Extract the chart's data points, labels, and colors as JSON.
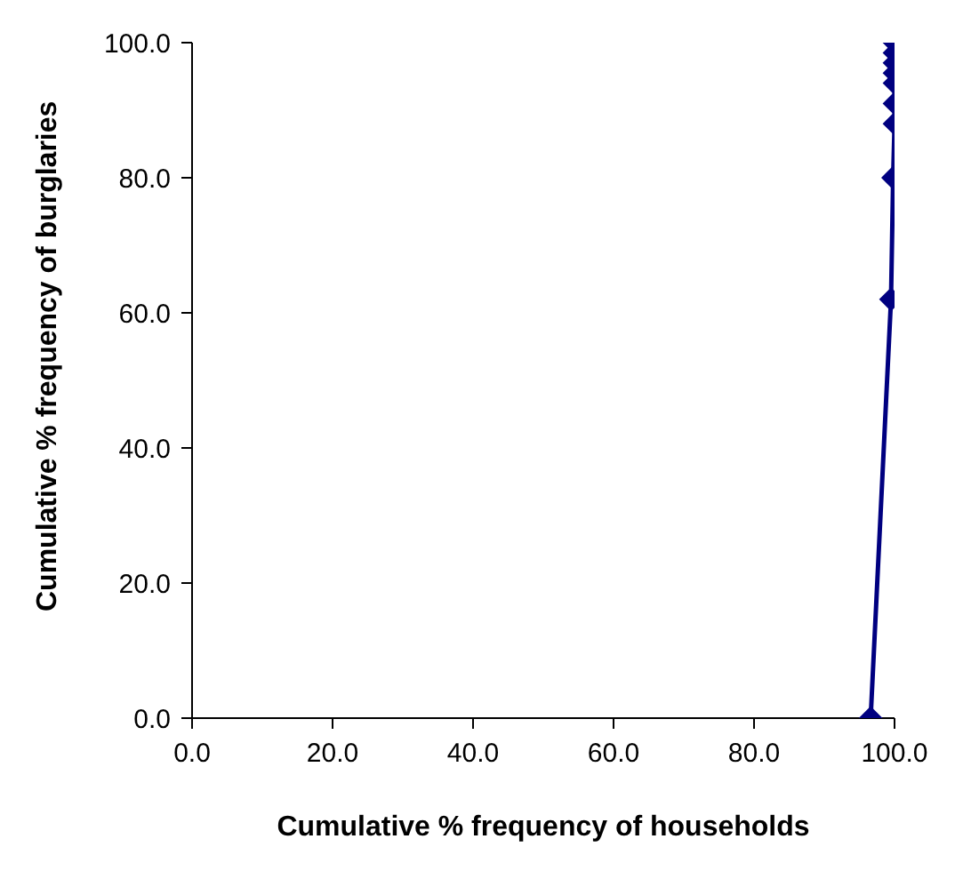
{
  "chart_data": {
    "type": "line",
    "xlabel": "Cumulative % frequency of households",
    "ylabel": "Cumulative % frequency of burglaries",
    "x": [
      96.6,
      99.5,
      99.8,
      100,
      100,
      100,
      100,
      100,
      100,
      100
    ],
    "series": [
      {
        "color": "#000080",
        "values": [
          0,
          62,
          80,
          88,
          91,
          94,
          95.5,
          97,
          98.5,
          100
        ]
      }
    ],
    "xlim": [
      0,
      100
    ],
    "ylim": [
      0,
      100
    ],
    "xticks": [
      {
        "value": 0,
        "label": "0.0"
      },
      {
        "value": 20,
        "label": "20.0"
      },
      {
        "value": 40,
        "label": "40.0"
      },
      {
        "value": 60,
        "label": "60.0"
      },
      {
        "value": 80,
        "label": "80.0"
      },
      {
        "value": 100,
        "label": "100.0"
      }
    ],
    "yticks": [
      {
        "value": 0,
        "label": "0.0"
      },
      {
        "value": 20,
        "label": "20.0"
      },
      {
        "value": 40,
        "label": "40.0"
      },
      {
        "value": 60,
        "label": "60.0"
      },
      {
        "value": 80,
        "label": "80.0"
      },
      {
        "value": 100,
        "label": "100.0"
      }
    ],
    "grid": false,
    "legend": false,
    "marker": "diamond",
    "line_style": "solid"
  }
}
